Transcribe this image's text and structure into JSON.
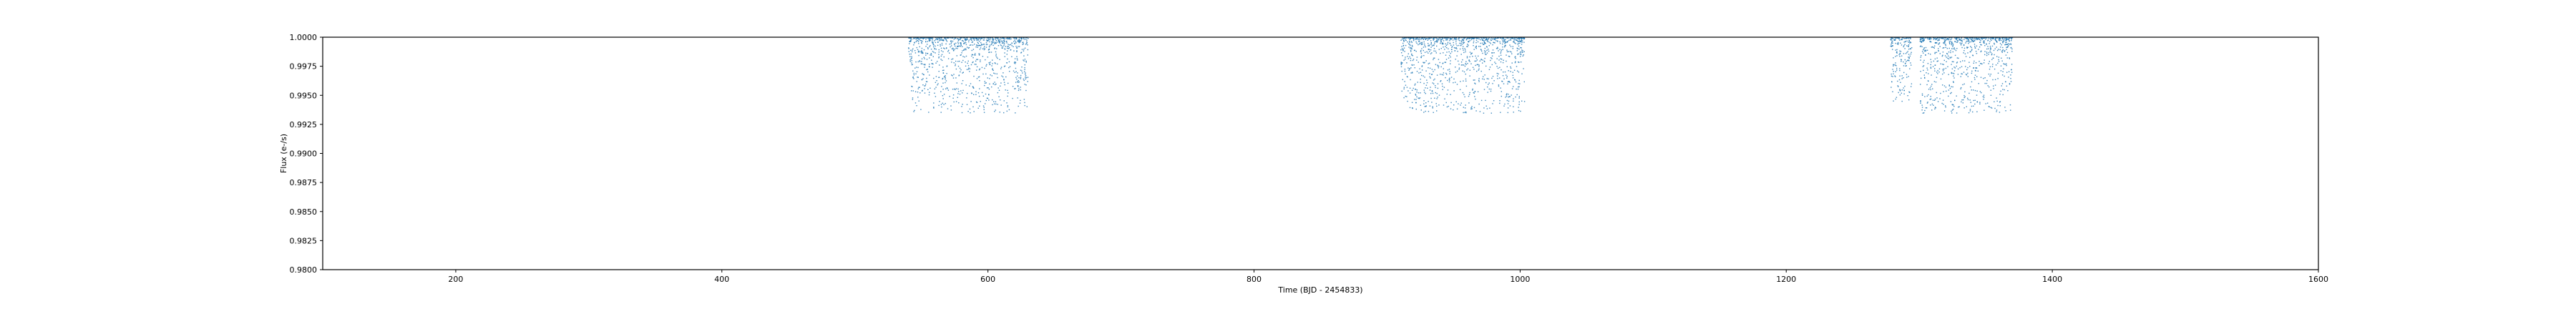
{
  "colors": {
    "series": "#1f77b4",
    "axis": "#000000",
    "background": "#ffffff"
  },
  "chart_data": {
    "type": "scatter",
    "title": "",
    "xlabel": "Time (BJD - 2454833)",
    "ylabel": "Flux (e-/s)",
    "xlim": [
      100,
      1600
    ],
    "ylim": [
      0.98,
      1.0
    ],
    "grid": false,
    "legend": "none",
    "x_ticks": [
      200,
      400,
      600,
      800,
      1000,
      1200,
      1400,
      1600
    ],
    "x_tick_labels": [
      "200",
      "400",
      "600",
      "800",
      "1000",
      "1200",
      "1400",
      "1600"
    ],
    "y_ticks": [
      0.98,
      0.9825,
      0.985,
      0.9875,
      0.99,
      0.9925,
      0.995,
      0.9975,
      1.0
    ],
    "y_tick_labels": [
      "0.9800",
      "0.9825",
      "0.9850",
      "0.9875",
      "0.9900",
      "0.9925",
      "0.9950",
      "0.9975",
      "1.0000"
    ],
    "series": [
      {
        "name": "flux",
        "marker": "point",
        "segments": [
          {
            "x_start": 540,
            "x_end": 630,
            "y_min": 0.9935,
            "y_max": 1.0
          },
          {
            "x_start": 910,
            "x_end": 1003,
            "y_min": 0.9935,
            "y_max": 1.0
          },
          {
            "x_start": 1278,
            "x_end": 1294,
            "y_min": 0.9945,
            "y_max": 1.0
          },
          {
            "x_start": 1300,
            "x_end": 1370,
            "y_min": 0.9935,
            "y_max": 1.0
          }
        ],
        "typical_range": [
          0.9955,
          1.0
        ]
      }
    ]
  }
}
